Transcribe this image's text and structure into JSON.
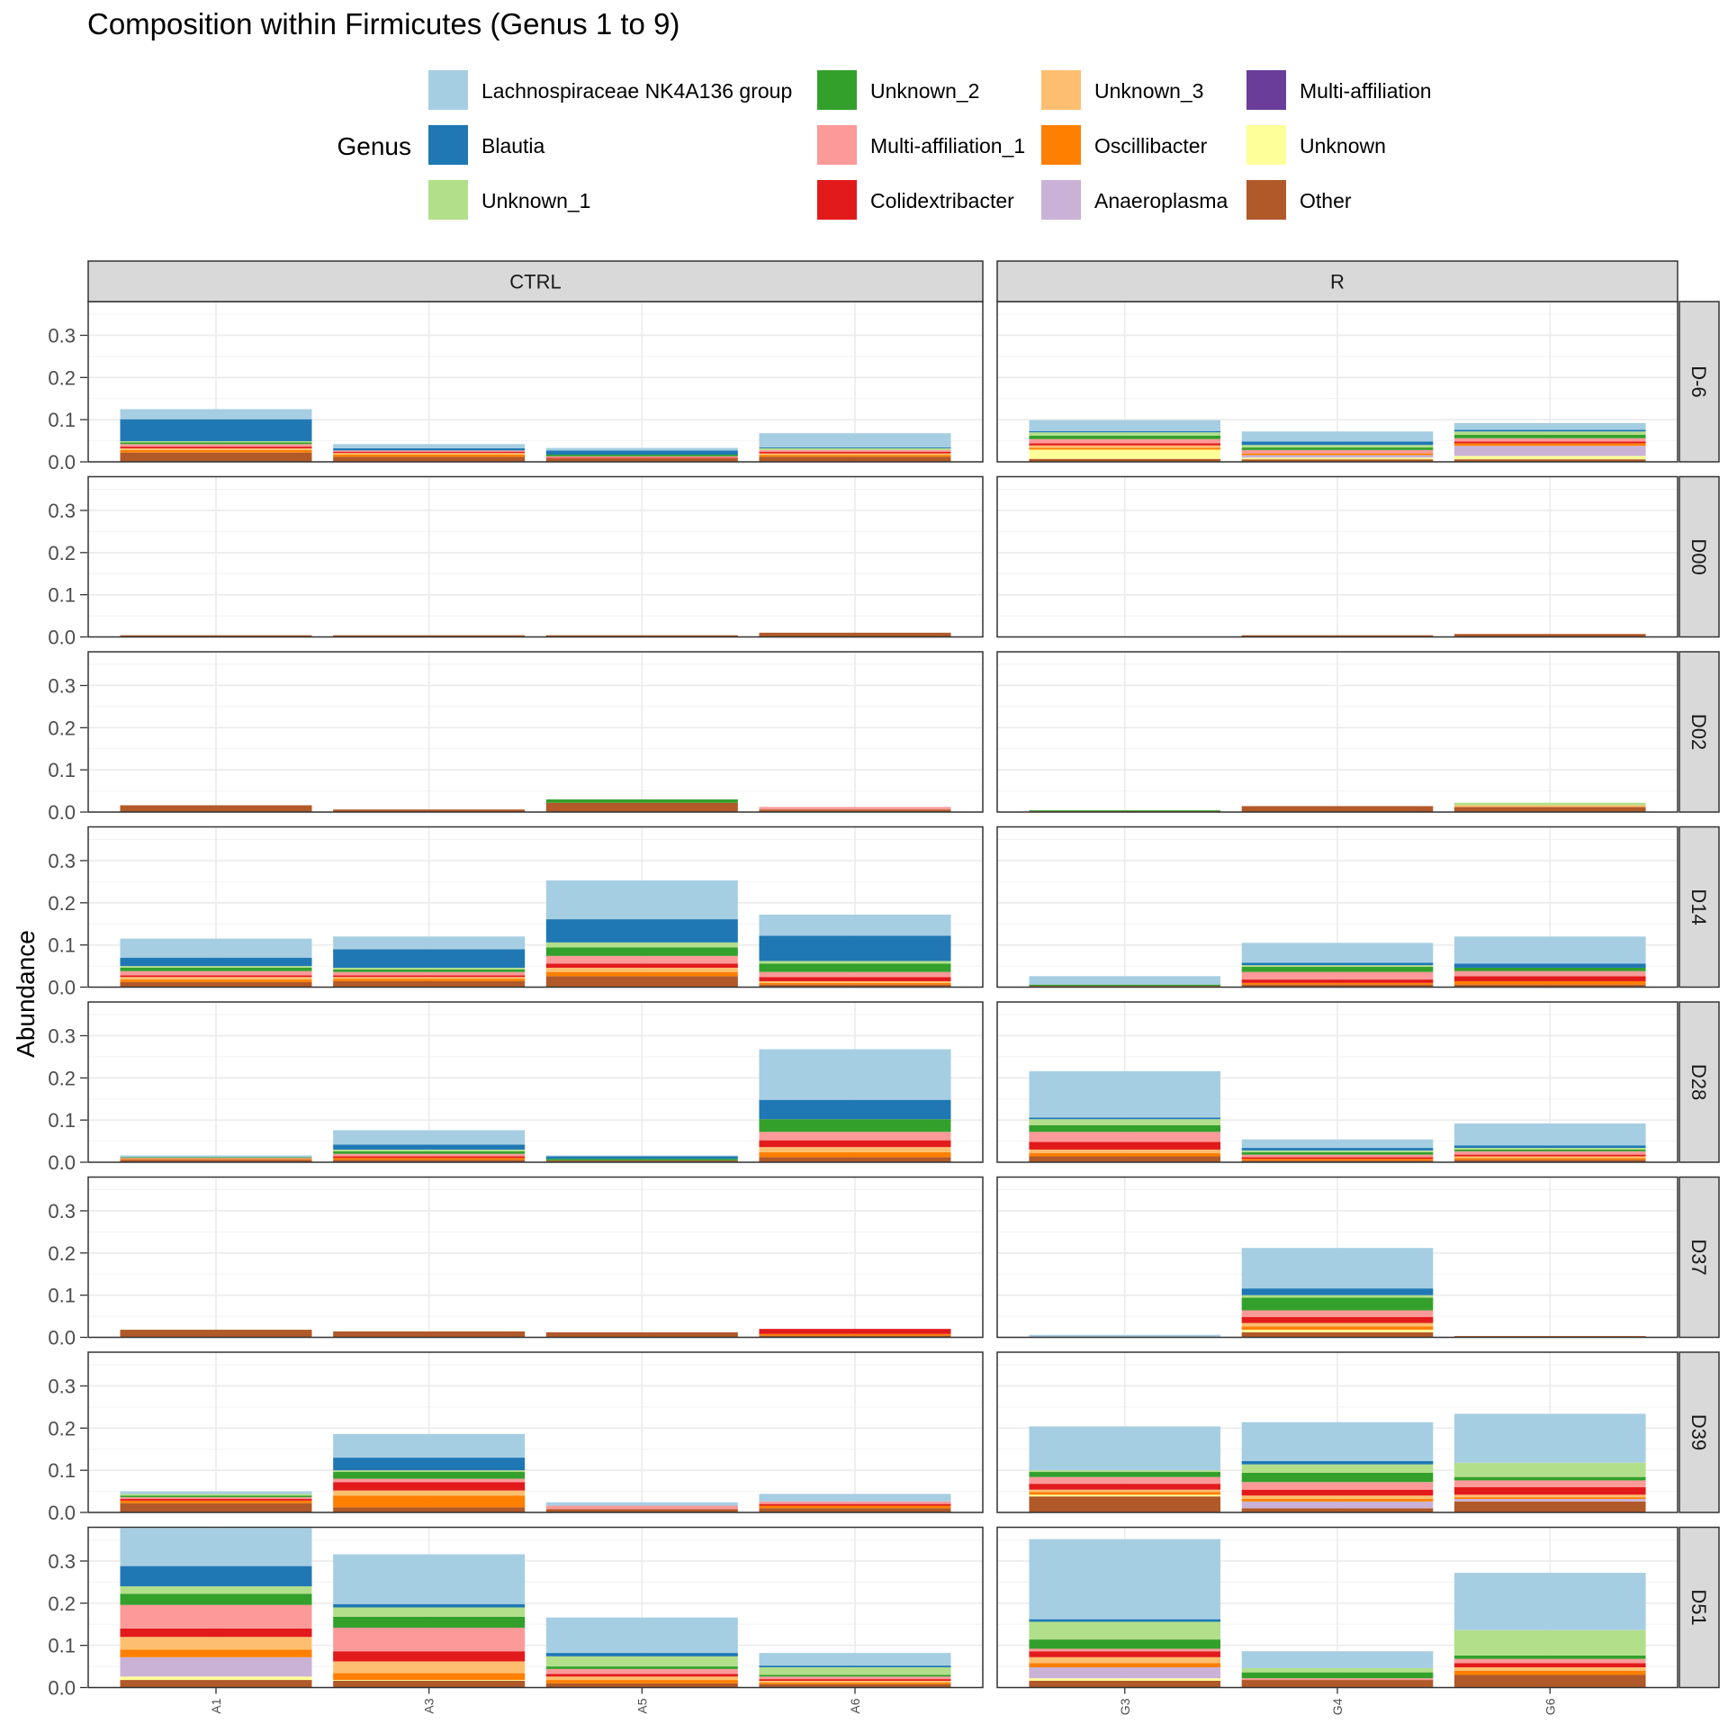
{
  "chart_data": {
    "type": "bar",
    "title": "Composition within Firmicutes (Genus 1 to 9)",
    "ylabel": "Abundance",
    "xlabel": "",
    "ylim": [
      0,
      0.38
    ],
    "yticks": [
      "0.0",
      "0.1",
      "0.2",
      "0.3"
    ],
    "legend": {
      "title": "Genus",
      "position": "top",
      "items": [
        {
          "name": "Lachnospiraceae NK4A136 group",
          "color": "#a6cee3"
        },
        {
          "name": "Blautia",
          "color": "#1f78b4"
        },
        {
          "name": "Unknown_1",
          "color": "#b2df8a"
        },
        {
          "name": "Unknown_2",
          "color": "#33a02c"
        },
        {
          "name": "Multi-affiliation_1",
          "color": "#fb9a99"
        },
        {
          "name": "Colidextribacter",
          "color": "#e31a1c"
        },
        {
          "name": "Unknown_3",
          "color": "#fdbf6f"
        },
        {
          "name": "Oscillibacter",
          "color": "#ff7f00"
        },
        {
          "name": "Anaeroplasma",
          "color": "#cab2d6"
        },
        {
          "name": "Multi-affiliation",
          "color": "#6a3d9a"
        },
        {
          "name": "Unknown",
          "color": "#ffff99"
        },
        {
          "name": "Other",
          "color": "#b15928"
        }
      ]
    },
    "stack_order": [
      "Other",
      "Unknown",
      "Multi-affiliation",
      "Anaeroplasma",
      "Oscillibacter",
      "Unknown_3",
      "Colidextribacter",
      "Multi-affiliation_1",
      "Unknown_2",
      "Unknown_1",
      "Blautia",
      "Lachnospiraceae NK4A136 group"
    ],
    "facet_columns": [
      {
        "label": "CTRL",
        "samples": [
          "A1",
          "A3",
          "A5",
          "A6"
        ]
      },
      {
        "label": "R",
        "samples": [
          "G3",
          "G4",
          "G6"
        ]
      }
    ],
    "facet_rows": [
      "D-6",
      "D00",
      "D02",
      "D14",
      "D28",
      "D37",
      "D39",
      "D51"
    ],
    "bars": {
      "D-6": {
        "A1": {
          "Other": 0.022,
          "Oscillibacter": 0.006,
          "Unknown_3": 0.004,
          "Colidextribacter": 0.004,
          "Multi-affiliation_1": 0.006,
          "Unknown_2": 0.004,
          "Unknown_1": 0.003,
          "Blautia": 0.052,
          "Lachnospiraceae NK4A136 group": 0.024
        },
        "A3": {
          "Other": 0.012,
          "Oscillibacter": 0.005,
          "Unknown_3": 0.004,
          "Colidextribacter": 0.003,
          "Multi-affiliation_1": 0.003,
          "Blautia": 0.005,
          "Lachnospiraceae NK4A136 group": 0.01
        },
        "A5": {
          "Other": 0.008,
          "Unknown_2": 0.004,
          "Colidextribacter": 0.002,
          "Multi-affiliation_1": 0.003,
          "Blautia": 0.01,
          "Lachnospiraceae NK4A136 group": 0.006
        },
        "A6": {
          "Other": 0.012,
          "Oscillibacter": 0.004,
          "Unknown_3": 0.004,
          "Colidextribacter": 0.004,
          "Multi-affiliation_1": 0.004,
          "Unknown_1": 0.004,
          "Blautia": 0.002,
          "Lachnospiraceae NK4A136 group": 0.034
        },
        "G3": {
          "Other": 0.007,
          "Unknown": 0.022,
          "Oscillibacter": 0.004,
          "Unknown_3": 0.006,
          "Colidextribacter": 0.005,
          "Multi-affiliation_1": 0.01,
          "Unknown_2": 0.008,
          "Unknown_1": 0.008,
          "Blautia": 0.003,
          "Lachnospiraceae NK4A136 group": 0.026
        },
        "G4": {
          "Other": 0.006,
          "Unknown": 0.004,
          "Anaeroplasma": 0.006,
          "Oscillibacter": 0.004,
          "Multi-affiliation_1": 0.008,
          "Unknown_2": 0.006,
          "Unknown_1": 0.006,
          "Blautia": 0.008,
          "Lachnospiraceae NK4A136 group": 0.024
        },
        "G6": {
          "Other": 0.006,
          "Unknown": 0.008,
          "Anaeroplasma": 0.024,
          "Oscillibacter": 0.006,
          "Colidextribacter": 0.004,
          "Multi-affiliation_1": 0.008,
          "Unknown_2": 0.008,
          "Unknown_1": 0.008,
          "Blautia": 0.004,
          "Lachnospiraceae NK4A136 group": 0.016
        }
      },
      "D00": {
        "A1": {
          "Other": 0.004
        },
        "A3": {
          "Other": 0.004
        },
        "A5": {
          "Other": 0.004
        },
        "A6": {
          "Other": 0.01
        },
        "G4": {
          "Other": 0.004
        },
        "G6": {
          "Other": 0.007
        }
      },
      "D02": {
        "A1": {
          "Other": 0.016
        },
        "A3": {
          "Other": 0.006
        },
        "A5": {
          "Other": 0.022,
          "Unknown_2": 0.008
        },
        "A6": {
          "Other": 0.006,
          "Multi-affiliation_1": 0.006
        },
        "G3": {
          "Other": 0.002,
          "Unknown_2": 0.002
        },
        "G4": {
          "Other": 0.014
        },
        "G6": {
          "Other": 0.012,
          "Unknown_3": 0.004,
          "Unknown_1": 0.006
        }
      },
      "D14": {
        "A1": {
          "Other": 0.012,
          "Oscillibacter": 0.006,
          "Unknown_3": 0.006,
          "Colidextribacter": 0.004,
          "Multi-affiliation_1": 0.01,
          "Unknown_2": 0.008,
          "Unknown_1": 0.004,
          "Blautia": 0.02,
          "Lachnospiraceae NK4A136 group": 0.045
        },
        "A3": {
          "Other": 0.014,
          "Oscillibacter": 0.006,
          "Unknown_3": 0.004,
          "Colidextribacter": 0.004,
          "Multi-affiliation_1": 0.008,
          "Unknown_2": 0.006,
          "Unknown_1": 0.004,
          "Blautia": 0.044,
          "Lachnospiraceae NK4A136 group": 0.03
        },
        "A5": {
          "Other": 0.026,
          "Oscillibacter": 0.01,
          "Unknown_3": 0.01,
          "Colidextribacter": 0.01,
          "Multi-affiliation_1": 0.018,
          "Unknown_2": 0.02,
          "Unknown_1": 0.012,
          "Blautia": 0.055,
          "Lachnospiraceae NK4A136 group": 0.092
        },
        "A6": {
          "Other": 0.006,
          "Oscillibacter": 0.004,
          "Unknown_3": 0.004,
          "Colidextribacter": 0.01,
          "Multi-affiliation_1": 0.012,
          "Unknown_2": 0.02,
          "Unknown_1": 0.006,
          "Blautia": 0.06,
          "Lachnospiraceae NK4A136 group": 0.05
        },
        "G3": {
          "Other": 0.003,
          "Unknown_2": 0.003,
          "Lachnospiraceae NK4A136 group": 0.02
        },
        "G4": {
          "Other": 0.006,
          "Oscillibacter": 0.004,
          "Colidextribacter": 0.008,
          "Multi-affiliation_1": 0.018,
          "Unknown_2": 0.012,
          "Unknown_1": 0.004,
          "Blautia": 0.006,
          "Lachnospiraceae NK4A136 group": 0.047
        },
        "G6": {
          "Other": 0.006,
          "Oscillibacter": 0.008,
          "Colidextribacter": 0.012,
          "Multi-affiliation_1": 0.012,
          "Unknown_2": 0.008,
          "Blautia": 0.01,
          "Lachnospiraceae NK4A136 group": 0.064
        }
      },
      "D28": {
        "A1": {
          "Other": 0.006,
          "Oscillibacter": 0.002,
          "Multi-affiliation_1": 0.002,
          "Unknown_2": 0.002,
          "Lachnospiraceae NK4A136 group": 0.004
        },
        "A3": {
          "Other": 0.006,
          "Oscillibacter": 0.004,
          "Colidextribacter": 0.004,
          "Multi-affiliation_1": 0.006,
          "Unknown_2": 0.006,
          "Unknown_1": 0.004,
          "Blautia": 0.012,
          "Lachnospiraceae NK4A136 group": 0.034
        },
        "A5": {
          "Other": 0.004,
          "Unknown_2": 0.004,
          "Blautia": 0.006,
          "Lachnospiraceae NK4A136 group": 0.002
        },
        "A6": {
          "Other": 0.012,
          "Oscillibacter": 0.012,
          "Unknown_3": 0.012,
          "Colidextribacter": 0.016,
          "Multi-affiliation_1": 0.02,
          "Unknown_2": 0.03,
          "Blautia": 0.046,
          "Lachnospiraceae NK4A136 group": 0.12
        },
        "G3": {
          "Other": 0.014,
          "Oscillibacter": 0.008,
          "Unknown_3": 0.008,
          "Colidextribacter": 0.018,
          "Multi-affiliation_1": 0.024,
          "Unknown_2": 0.016,
          "Unknown_1": 0.014,
          "Blautia": 0.004,
          "Lachnospiraceae NK4A136 group": 0.11
        },
        "G4": {
          "Other": 0.004,
          "Oscillibacter": 0.004,
          "Colidextribacter": 0.004,
          "Multi-affiliation_1": 0.006,
          "Unknown_2": 0.006,
          "Unknown_1": 0.004,
          "Blautia": 0.006,
          "Lachnospiraceae NK4A136 group": 0.02
        },
        "G6": {
          "Other": 0.006,
          "Oscillibacter": 0.004,
          "Unknown_3": 0.004,
          "Colidextribacter": 0.004,
          "Multi-affiliation_1": 0.008,
          "Unknown_2": 0.004,
          "Unknown_1": 0.004,
          "Blautia": 0.006,
          "Lachnospiraceae NK4A136 group": 0.052
        }
      },
      "D37": {
        "A1": {
          "Other": 0.018
        },
        "A3": {
          "Other": 0.014
        },
        "A5": {
          "Other": 0.012
        },
        "A6": {
          "Other": 0.004,
          "Oscillibacter": 0.004,
          "Colidextribacter": 0.012
        },
        "G3": {
          "Lachnospiraceae NK4A136 group": 0.006
        },
        "G4": {
          "Other": 0.012,
          "Unknown": 0.006,
          "Oscillibacter": 0.008,
          "Unknown_3": 0.008,
          "Colidextribacter": 0.014,
          "Multi-affiliation_1": 0.016,
          "Unknown_2": 0.03,
          "Unknown_1": 0.006,
          "Blautia": 0.016,
          "Lachnospiraceae NK4A136 group": 0.096
        },
        "G6": {
          "Other": 0.003
        }
      },
      "D39": {
        "A1": {
          "Other": 0.022,
          "Oscillibacter": 0.006,
          "Colidextribacter": 0.004,
          "Multi-affiliation_1": 0.004,
          "Unknown_2": 0.004,
          "Unknown_1": 0.004,
          "Lachnospiraceae NK4A136 group": 0.006
        },
        "A3": {
          "Other": 0.012,
          "Oscillibacter": 0.028,
          "Unknown_3": 0.012,
          "Colidextribacter": 0.02,
          "Multi-affiliation_1": 0.008,
          "Unknown_2": 0.016,
          "Unknown_1": 0.004,
          "Blautia": 0.03,
          "Lachnospiraceae NK4A136 group": 0.056
        },
        "A5": {
          "Other": 0.008,
          "Multi-affiliation_1": 0.008,
          "Lachnospiraceae NK4A136 group": 0.008
        },
        "A6": {
          "Other": 0.01,
          "Oscillibacter": 0.006,
          "Colidextribacter": 0.004,
          "Multi-affiliation_1": 0.006,
          "Lachnospiraceae NK4A136 group": 0.018
        },
        "G3": {
          "Other": 0.038,
          "Unknown": 0.004,
          "Oscillibacter": 0.006,
          "Unknown_3": 0.006,
          "Colidextribacter": 0.014,
          "Multi-affiliation_1": 0.016,
          "Unknown_2": 0.012,
          "Unknown_1": 0.004,
          "Lachnospiraceae NK4A136 group": 0.104
        },
        "G4": {
          "Other": 0.01,
          "Anaeroplasma": 0.016,
          "Oscillibacter": 0.006,
          "Unknown_3": 0.008,
          "Colidextribacter": 0.014,
          "Multi-affiliation_1": 0.018,
          "Unknown_2": 0.022,
          "Unknown_1": 0.02,
          "Blautia": 0.008,
          "Lachnospiraceae NK4A136 group": 0.092
        },
        "G6": {
          "Other": 0.026,
          "Anaeroplasma": 0.006,
          "Oscillibacter": 0.004,
          "Unknown_3": 0.006,
          "Colidextribacter": 0.018,
          "Multi-affiliation_1": 0.016,
          "Unknown_2": 0.008,
          "Unknown_1": 0.034,
          "Lachnospiraceae NK4A136 group": 0.116
        }
      },
      "D51": {
        "A1": {
          "Other": 0.018,
          "Unknown": 0.008,
          "Anaeroplasma": 0.046,
          "Oscillibacter": 0.018,
          "Unknown_3": 0.03,
          "Colidextribacter": 0.02,
          "Multi-affiliation_1": 0.056,
          "Unknown_2": 0.026,
          "Unknown_1": 0.018,
          "Blautia": 0.048,
          "Lachnospiraceae NK4A136 group": 0.09
        },
        "A3": {
          "Other": 0.016,
          "Unknown": 0.002,
          "Oscillibacter": 0.016,
          "Unknown_3": 0.028,
          "Colidextribacter": 0.024,
          "Multi-affiliation_1": 0.056,
          "Unknown_2": 0.026,
          "Unknown_1": 0.022,
          "Blautia": 0.008,
          "Lachnospiraceae NK4A136 group": 0.118
        },
        "A5": {
          "Other": 0.01,
          "Oscillibacter": 0.008,
          "Unknown_3": 0.008,
          "Colidextribacter": 0.006,
          "Multi-affiliation_1": 0.012,
          "Unknown_2": 0.006,
          "Unknown_1": 0.024,
          "Blautia": 0.008,
          "Lachnospiraceae NK4A136 group": 0.084
        },
        "A6": {
          "Other": 0.008,
          "Oscillibacter": 0.004,
          "Unknown_3": 0.004,
          "Colidextribacter": 0.004,
          "Multi-affiliation_1": 0.006,
          "Unknown_2": 0.004,
          "Unknown_1": 0.018,
          "Blautia": 0.004,
          "Lachnospiraceae NK4A136 group": 0.03
        },
        "G3": {
          "Other": 0.016,
          "Unknown": 0.006,
          "Anaeroplasma": 0.026,
          "Oscillibacter": 0.01,
          "Unknown_3": 0.014,
          "Colidextribacter": 0.014,
          "Multi-affiliation_1": 0.006,
          "Unknown_2": 0.022,
          "Unknown_1": 0.042,
          "Blautia": 0.006,
          "Lachnospiraceae NK4A136 group": 0.19
        },
        "G4": {
          "Other": 0.018,
          "Multi-affiliation_1": 0.004,
          "Unknown_2": 0.014,
          "Unknown_1": 0.01,
          "Lachnospiraceae NK4A136 group": 0.04
        },
        "G6": {
          "Other": 0.03,
          "Oscillibacter": 0.01,
          "Unknown_3": 0.008,
          "Colidextribacter": 0.01,
          "Multi-affiliation_1": 0.01,
          "Unknown_2": 0.008,
          "Unknown_1": 0.06,
          "Lachnospiraceae NK4A136 group": 0.136
        }
      }
    }
  }
}
